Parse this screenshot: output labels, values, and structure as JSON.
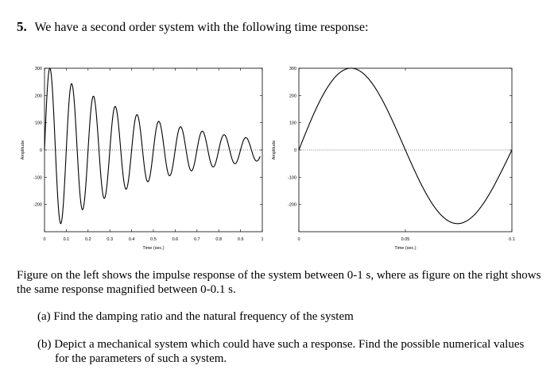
{
  "question": {
    "number": "5.",
    "statement": "We have a second order system with the following time response:"
  },
  "chart_data": [
    {
      "type": "line",
      "title": "",
      "xlabel": "Time (sec.)",
      "ylabel": "Amplitude",
      "xlim": [
        0,
        1
      ],
      "ylim": [
        -300,
        300
      ],
      "xticks": [
        "0",
        "0.1",
        "0.2",
        "0.3",
        "0.4",
        "0.5",
        "0.6",
        "0.7",
        "0.8",
        "0.9",
        "1"
      ],
      "yticks": [
        "300",
        "200",
        "100",
        "0",
        "-100",
        "-200"
      ],
      "yticks_values": [
        300,
        200,
        100,
        0,
        -100,
        -200
      ],
      "zero_line": "dotted",
      "series": [
        {
          "response": "damped-sinusoid",
          "amplitude": 300,
          "frequency_hz": 10,
          "decay_per_sec": 2.1,
          "peak_time": 0.025,
          "end_time": 0.99
        }
      ]
    },
    {
      "type": "line",
      "title": "",
      "xlabel": "Time (sec.)",
      "ylabel": "Amplitude",
      "xlim": [
        0,
        0.1
      ],
      "ylim": [
        -300,
        300
      ],
      "xticks": [
        "0",
        "0.05",
        "0.1"
      ],
      "yticks": [
        "300",
        "200",
        "100",
        "0",
        "-100",
        "-200"
      ],
      "yticks_values": [
        300,
        200,
        100,
        0,
        -100,
        -200
      ],
      "zero_line": "dotted",
      "series": [
        {
          "response": "damped-sinusoid",
          "amplitude": 300,
          "frequency_hz": 10,
          "decay_per_sec": 2.1,
          "peak_time": 0.025,
          "end_time": 0.1
        }
      ]
    }
  ],
  "description": "Figure on the left shows the impulse response of the system between 0-1 s, where as figure on the right shows the same response magnified between 0-0.1 s.",
  "parts": [
    {
      "label": "(a)",
      "text": "Find the damping ratio and the natural frequency of the system"
    },
    {
      "label": "(b)",
      "text": "Depict a mechanical system which could have such a response. Find the possible numerical values for the parameters of such a system."
    }
  ]
}
